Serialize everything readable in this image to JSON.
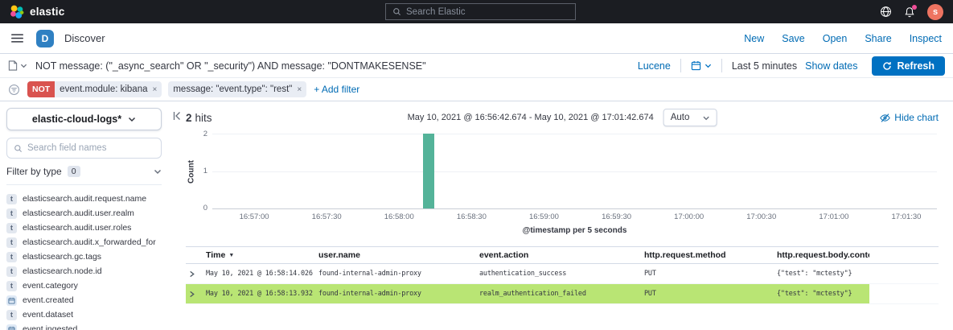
{
  "colors": {
    "link_blue": "#006bb4",
    "primary_button_blue": "#0071c2",
    "histogram_bar_teal": "#54b399",
    "row_highlight_green": "#b9e574",
    "filter_negate_red": "#d9534f",
    "topbar_dark": "#1b1d22",
    "avatar_orange": "#ee7461",
    "space_badge_blue": "#2f80c2",
    "notification_dot_pink": "#f04e98"
  },
  "topbar": {
    "brand": "elastic",
    "search_placeholder": "Search Elastic",
    "avatar_initial": "s"
  },
  "navbar": {
    "space_initial": "D",
    "breadcrumb": "Discover",
    "actions": [
      "New",
      "Save",
      "Open",
      "Share",
      "Inspect"
    ]
  },
  "querybar": {
    "query": "NOT message: (\"_async_search\" OR \"_security\") AND message: \"DONTMAKESENSE\"",
    "language": "Lucene",
    "time_range": "Last 5 minutes",
    "show_dates_label": "Show dates",
    "refresh_label": "Refresh"
  },
  "filterbar": {
    "filters": [
      {
        "prefix": "NOT",
        "label": "event.module: kibana"
      },
      {
        "prefix": "",
        "label": "message: \"event.type\": \"rest\""
      }
    ],
    "add_filter_label": "+ Add filter"
  },
  "sidebar": {
    "index_pattern": "elastic-cloud-logs*",
    "field_search_placeholder": "Search field names",
    "filter_by_type_label": "Filter by type",
    "filter_by_type_count": "0",
    "fields": [
      {
        "type": "text",
        "name": "elasticsearch.audit.request.name"
      },
      {
        "type": "text",
        "name": "elasticsearch.audit.user.realm"
      },
      {
        "type": "text",
        "name": "elasticsearch.audit.user.roles"
      },
      {
        "type": "text",
        "name": "elasticsearch.audit.x_forwarded_for"
      },
      {
        "type": "text",
        "name": "elasticsearch.gc.tags"
      },
      {
        "type": "text",
        "name": "elasticsearch.node.id"
      },
      {
        "type": "text",
        "name": "event.category"
      },
      {
        "type": "date",
        "name": "event.created"
      },
      {
        "type": "text",
        "name": "event.dataset"
      },
      {
        "type": "date",
        "name": "event.ingested"
      }
    ]
  },
  "results": {
    "hits_value": "2",
    "hits_label": "hits",
    "time_range": "May 10, 2021 @ 16:56:42.674 - May 10, 2021 @ 17:01:42.674",
    "interval": "Auto",
    "hide_chart_label": "Hide chart"
  },
  "chart_data": {
    "type": "bar",
    "title": "",
    "ylabel": "Count",
    "xlabel": "@timestamp per 5 seconds",
    "y_ticks": [
      0,
      1,
      2
    ],
    "ylim": [
      0,
      2
    ],
    "x_domain": [
      "16:56:42.674",
      "17:01:42.674"
    ],
    "x_ticks": [
      "16:57:00",
      "16:57:30",
      "16:58:00",
      "16:58:30",
      "16:59:00",
      "16:59:30",
      "17:00:00",
      "17:00:30",
      "17:01:00",
      "17:01:30"
    ],
    "bars": [
      {
        "x": "16:58:10",
        "value": 2
      }
    ],
    "bar_color": "#54b399",
    "layout": {
      "first_tick_pct": 5.78,
      "tick_step_pct": 10,
      "bars_pct": [
        {
          "left": 29.1,
          "width": 1.5
        }
      ],
      "grid": "horizontal",
      "legend": "none"
    }
  },
  "table": {
    "columns": [
      {
        "label": "Time",
        "sorted": "desc"
      },
      {
        "label": "user.name",
        "sorted": ""
      },
      {
        "label": "event.action",
        "sorted": ""
      },
      {
        "label": "http.request.method",
        "sorted": ""
      },
      {
        "label": "http.request.body.content",
        "sorted": ""
      }
    ],
    "rows": [
      {
        "time": "May 10, 2021 @ 16:58:14.026",
        "user_name": "found-internal-admin-proxy",
        "event_action": "authentication_success",
        "http_request_method": "PUT",
        "http_request_body_content": "{\"test\": \"mctesty\"}",
        "highlighted": false
      },
      {
        "time": "May 10, 2021 @ 16:58:13.932",
        "user_name": "found-internal-admin-proxy",
        "event_action": "realm_authentication_failed",
        "http_request_method": "PUT",
        "http_request_body_content": "{\"test\": \"mctesty\"}",
        "highlighted": true
      }
    ],
    "highlight_color": "#b9e574"
  }
}
